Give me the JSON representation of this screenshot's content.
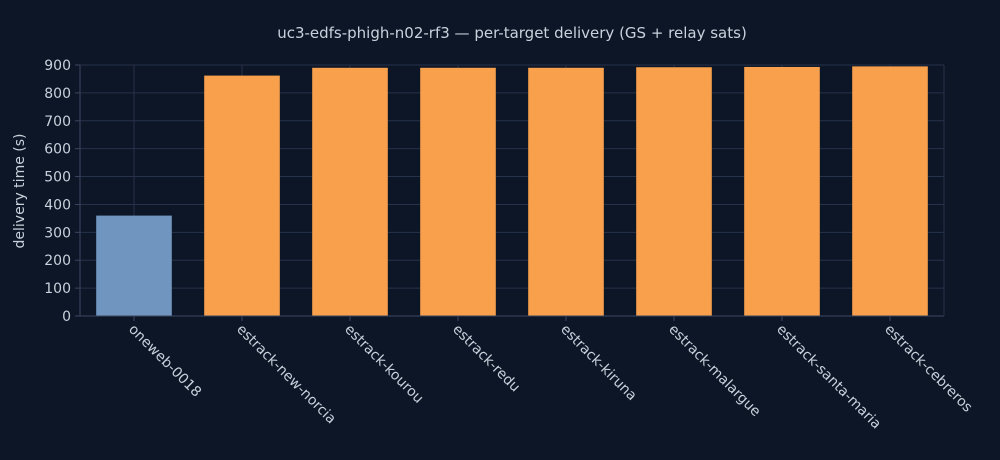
{
  "chart_data": {
    "type": "bar",
    "title": "uc3-edfs-phigh-n02-rf3 — per-target delivery (GS + relay sats)",
    "xlabel": "",
    "ylabel": "delivery time (s)",
    "ylim": [
      0,
      900
    ],
    "yticks": [
      0,
      100,
      200,
      300,
      400,
      500,
      600,
      700,
      800,
      900
    ],
    "grid": true,
    "legend": "none",
    "categories": [
      "oneweb-0018",
      "estrack-new-norcia",
      "estrack-kourou",
      "estrack-redu",
      "estrack-kiruna",
      "estrack-malargue",
      "estrack-santa-maria",
      "estrack-cebreros"
    ],
    "values": [
      360,
      862,
      890,
      890,
      890,
      892,
      893,
      895
    ],
    "colors": [
      "#7096c0",
      "#f8a04b",
      "#f8a04b",
      "#f8a04b",
      "#f8a04b",
      "#f8a04b",
      "#f8a04b",
      "#f8a04b"
    ]
  },
  "colors": {
    "background": "#0d1627",
    "grid": "#26324a",
    "text": "#c9d1dc"
  }
}
